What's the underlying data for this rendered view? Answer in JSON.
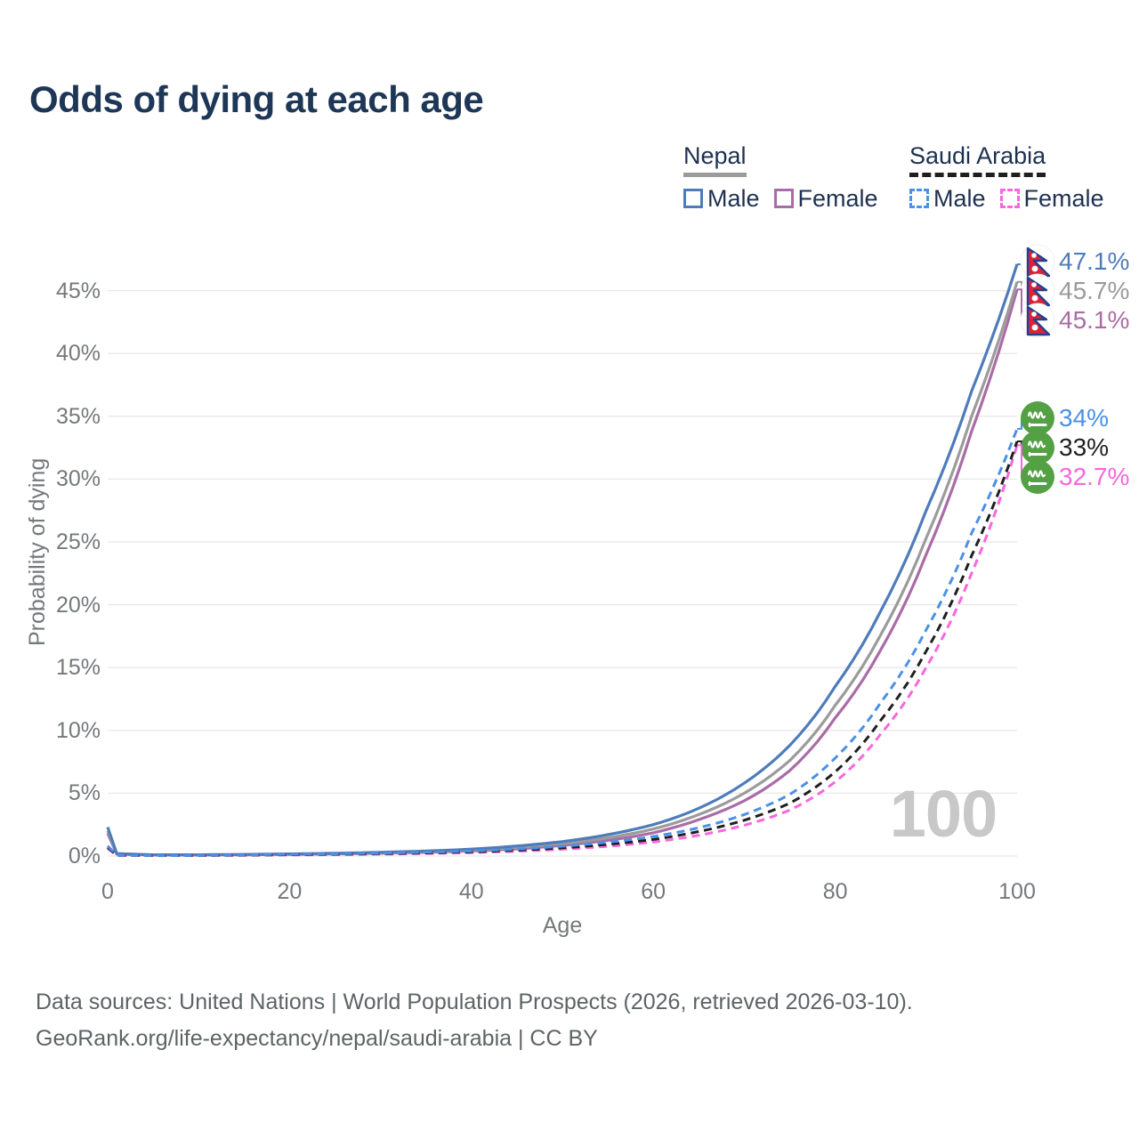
{
  "title": "Odds of dying at each age",
  "watermark_age": "100",
  "legend": {
    "nepal": {
      "label": "Nepal",
      "male": "Male",
      "female": "Female"
    },
    "saudi": {
      "label": "Saudi Arabia",
      "male": "Male",
      "female": "Female"
    }
  },
  "axes": {
    "y_title": "Probability of dying",
    "x_title": "Age",
    "y_ticks": [
      0,
      5,
      10,
      15,
      20,
      25,
      30,
      35,
      40,
      45
    ],
    "x_ticks": [
      0,
      20,
      40,
      60,
      80,
      100
    ],
    "x_range": [
      0,
      100
    ],
    "y_range_pct": [
      0,
      47.5
    ]
  },
  "chart_data": {
    "type": "line",
    "title": "Odds of dying at each age",
    "xlabel": "Age",
    "ylabel": "Probability of dying",
    "x_sample_ages": [
      0,
      1,
      5,
      10,
      15,
      20,
      25,
      30,
      35,
      40,
      45,
      50,
      55,
      60,
      65,
      70,
      75,
      80,
      85,
      90,
      95,
      100
    ],
    "grid": "horizontal-only",
    "legend_position": "top-right",
    "series": [
      {
        "id": "nepal_female",
        "name": "Nepal Female",
        "country": "Nepal",
        "flag_icon": "nepal-flag-icon",
        "color": "#aa6ca6",
        "dash": false,
        "values_pct": [
          1.8,
          0.16,
          0.08,
          0.08,
          0.1,
          0.13,
          0.17,
          0.22,
          0.29,
          0.4,
          0.57,
          0.85,
          1.25,
          1.85,
          2.9,
          4.4,
          6.8,
          11.0,
          16.4,
          24.0,
          33.8,
          45.1
        ],
        "end_label": "45.1%"
      },
      {
        "id": "nepal_both",
        "name": "Nepal Both sexes",
        "country": "Nepal",
        "flag_icon": "nepal-flag-icon",
        "color": "#9b9b9b",
        "dash": false,
        "values_pct": [
          2.0,
          0.18,
          0.09,
          0.09,
          0.11,
          0.15,
          0.19,
          0.26,
          0.34,
          0.47,
          0.68,
          1.0,
          1.45,
          2.15,
          3.3,
          5.0,
          7.6,
          12.0,
          17.6,
          25.3,
          35.0,
          45.7
        ],
        "end_label": "45.7%"
      },
      {
        "id": "nepal_male",
        "name": "Nepal Male",
        "country": "Nepal",
        "flag_icon": "nepal-flag-icon",
        "color": "#4e7cba",
        "dash": false,
        "values_pct": [
          2.3,
          0.2,
          0.1,
          0.1,
          0.13,
          0.17,
          0.22,
          0.3,
          0.4,
          0.55,
          0.8,
          1.15,
          1.7,
          2.5,
          3.8,
          5.8,
          8.8,
          13.5,
          19.5,
          27.5,
          37.0,
          47.1
        ],
        "end_label": "47.1%"
      },
      {
        "id": "saudi_female",
        "name": "Saudi Arabia Female",
        "country": "Saudi Arabia",
        "flag_icon": "saudi-arabia-flag-icon",
        "color": "#f966dd",
        "dash": true,
        "values_pct": [
          0.6,
          0.05,
          0.03,
          0.04,
          0.06,
          0.08,
          0.11,
          0.15,
          0.2,
          0.27,
          0.38,
          0.54,
          0.78,
          1.12,
          1.65,
          2.45,
          3.65,
          5.9,
          9.7,
          15.0,
          22.5,
          32.7
        ],
        "end_label": "32.7%"
      },
      {
        "id": "saudi_both",
        "name": "Saudi Arabia Both sexes",
        "country": "Saudi Arabia",
        "flag_icon": "saudi-arabia-flag-icon",
        "color": "#1f1f1f",
        "dash": true,
        "values_pct": [
          0.7,
          0.06,
          0.04,
          0.04,
          0.07,
          0.11,
          0.15,
          0.19,
          0.25,
          0.33,
          0.46,
          0.65,
          0.93,
          1.32,
          1.95,
          2.85,
          4.2,
          6.7,
          10.8,
          16.3,
          23.9,
          33.0
        ],
        "end_label": "33%"
      },
      {
        "id": "saudi_male",
        "name": "Saudi Arabia Male",
        "country": "Saudi Arabia",
        "flag_icon": "saudi-arabia-flag-icon",
        "color": "#4a90e8",
        "dash": true,
        "values_pct": [
          0.8,
          0.07,
          0.04,
          0.05,
          0.09,
          0.14,
          0.18,
          0.23,
          0.3,
          0.4,
          0.55,
          0.78,
          1.1,
          1.55,
          2.25,
          3.3,
          4.9,
          7.8,
          12.2,
          18.0,
          25.7,
          34.0
        ],
        "end_label": "34%"
      }
    ],
    "end_label_order": {
      "Nepal": [
        "nepal_male",
        "nepal_both",
        "nepal_female"
      ],
      "Saudi Arabia": [
        "saudi_male",
        "saudi_both",
        "saudi_female"
      ]
    }
  },
  "colors": {
    "title_text": "#1e3756",
    "legend_text": "#1e3150",
    "axis_text": "#75797c",
    "gridline": "#e8e8e8",
    "watermark": "#c8c8c8",
    "footer_text": "#5d6466",
    "nepal_underline": "#9b9b9b",
    "saudi_underline": "#1f1f1f",
    "nepal_flag_red": "#dc2239",
    "nepal_flag_blue": "#24408e",
    "saudi_flag_green": "#54a044"
  },
  "footer": {
    "line1": "Data sources: United Nations | World Population Prospects (2026, retrieved 2026-03-10).",
    "line2": "GeoRank.org/life-expectancy/nepal/saudi-arabia | CC BY"
  }
}
